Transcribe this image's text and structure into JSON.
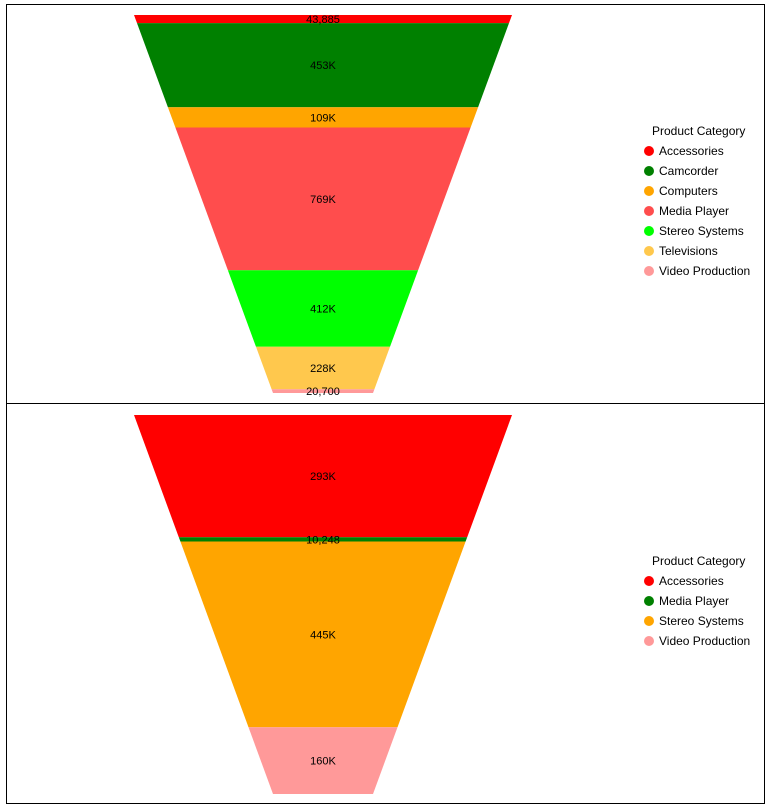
{
  "chart_data": [
    {
      "type": "funnel",
      "legend_title": "Product Category",
      "legend_position": "right",
      "segments": [
        {
          "name": "Accessories",
          "value": 43885,
          "label": "43,885",
          "color": "#ff0000"
        },
        {
          "name": "Camcorder",
          "value": 453000,
          "label": "453K",
          "color": "#008000"
        },
        {
          "name": "Computers",
          "value": 109000,
          "label": "109K",
          "color": "#ffa500"
        },
        {
          "name": "Media Player",
          "value": 769000,
          "label": "769K",
          "color": "#ff4d4d"
        },
        {
          "name": "Stereo Systems",
          "value": 412000,
          "label": "412K",
          "color": "#00ff00"
        },
        {
          "name": "Televisions",
          "value": 228000,
          "label": "228K",
          "color": "#ffc84d"
        },
        {
          "name": "Video Production",
          "value": 20700,
          "label": "20,700",
          "color": "#ff9999"
        }
      ]
    },
    {
      "type": "funnel",
      "legend_title": "Product Category",
      "legend_position": "right",
      "segments": [
        {
          "name": "Accessories",
          "value": 293000,
          "label": "293K",
          "color": "#ff0000"
        },
        {
          "name": "Media Player",
          "value": 10248,
          "label": "10,248",
          "color": "#008000"
        },
        {
          "name": "Stereo Systems",
          "value": 445000,
          "label": "445K",
          "color": "#ffa500"
        },
        {
          "name": "Video Production",
          "value": 160000,
          "label": "160K",
          "color": "#ff9999"
        }
      ]
    }
  ]
}
